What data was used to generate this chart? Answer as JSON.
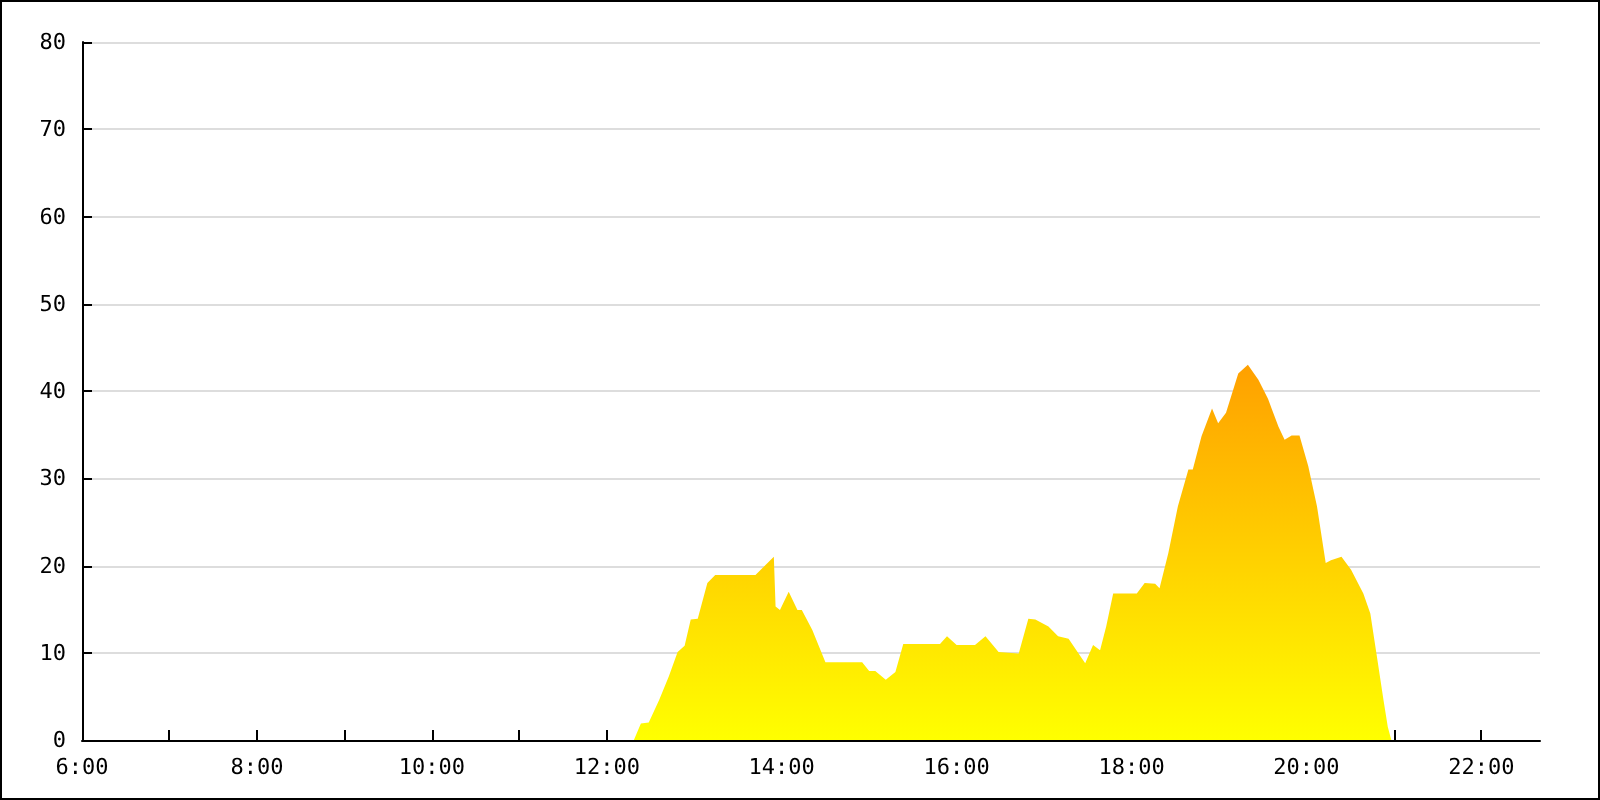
{
  "chart_data": {
    "type": "area",
    "x": [
      12.31,
      12.39,
      12.48,
      12.6,
      12.71,
      12.81,
      12.89,
      12.96,
      13.04,
      13.15,
      13.24,
      13.7,
      13.91,
      13.93,
      13.98,
      14.08,
      14.18,
      14.23,
      14.35,
      14.5,
      14.92,
      15.0,
      15.07,
      15.19,
      15.3,
      15.39,
      15.81,
      15.89,
      16.0,
      16.21,
      16.33,
      16.48,
      16.71,
      16.82,
      16.9,
      17.05,
      17.16,
      17.28,
      17.47,
      17.56,
      17.64,
      17.71,
      17.79,
      18.06,
      18.15,
      18.27,
      18.32,
      18.42,
      18.53,
      18.65,
      18.7,
      18.8,
      18.92,
      18.99,
      19.08,
      19.22,
      19.33,
      19.45,
      19.56,
      19.68,
      19.75,
      19.83,
      19.92,
      20.02,
      20.12,
      20.22,
      20.28,
      20.4,
      20.51,
      20.65,
      20.73,
      20.8,
      20.88,
      20.93,
      20.97
    ],
    "series": [
      {
        "color": "#ffa000",
        "values": [
          0,
          1.9,
          2,
          4.6,
          7.3,
          10.1,
          10.8,
          13.8,
          13.9,
          18,
          18.9,
          18.9,
          21,
          15.3,
          14.9,
          17,
          14.9,
          14.9,
          12.6,
          8.9,
          8.9,
          7.9,
          7.9,
          6.9,
          7.8,
          11,
          11,
          11.9,
          10.9,
          10.9,
          11.9,
          10.1,
          9.9,
          13.9,
          13.8,
          13,
          11.9,
          11.6,
          8.8,
          10.9,
          10.3,
          13,
          16.8,
          16.8,
          18,
          17.9,
          17.4,
          21.4,
          26.8,
          31,
          31,
          34.8,
          38,
          36.3,
          37.5,
          42,
          43,
          41.3,
          39.1,
          35.9,
          34.4,
          34.9,
          34.9,
          31.4,
          26.8,
          20.3,
          20.6,
          21,
          19.5,
          16.8,
          14.5,
          9.9,
          4.6,
          1.5,
          0
        ]
      }
    ],
    "xlim": [
      6,
      22.67
    ],
    "xticks": [
      {
        "value": 6,
        "label": "6:00"
      },
      {
        "value": 7,
        "label": null
      },
      {
        "value": 8,
        "label": "8:00"
      },
      {
        "value": 9,
        "label": null
      },
      {
        "value": 10,
        "label": "10:00"
      },
      {
        "value": 11,
        "label": null
      },
      {
        "value": 12,
        "label": "12:00"
      },
      {
        "value": 13,
        "label": null
      },
      {
        "value": 14,
        "label": "14:00"
      },
      {
        "value": 15,
        "label": null
      },
      {
        "value": 16,
        "label": "16:00"
      },
      {
        "value": 17,
        "label": null
      },
      {
        "value": 18,
        "label": "18:00"
      },
      {
        "value": 19,
        "label": null
      },
      {
        "value": 20,
        "label": "20:00"
      },
      {
        "value": 21,
        "label": null
      },
      {
        "value": 22,
        "label": "22:00"
      }
    ],
    "ylim": [
      0,
      80
    ],
    "yticks": [
      0,
      10,
      20,
      30,
      40,
      50,
      60,
      70,
      80
    ],
    "grid": "y"
  }
}
